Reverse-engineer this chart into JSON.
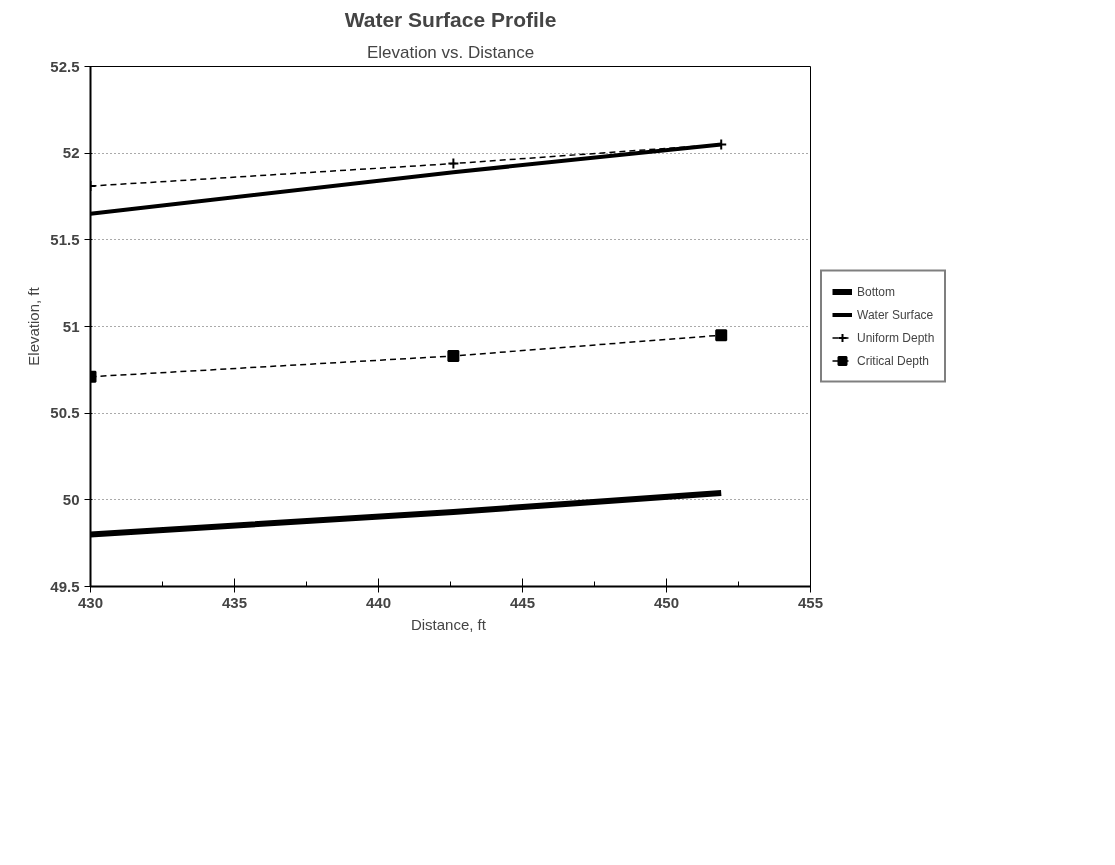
{
  "chart_data": {
    "type": "line",
    "title": "Water Surface Profile",
    "subtitle": "Elevation vs. Distance",
    "xlabel": "Distance,  ft",
    "ylabel": "Elevation, ft",
    "x": [
      430,
      442.6,
      451.9
    ],
    "series": [
      {
        "name": "Bottom",
        "color": "#000000",
        "values": [
          49.8,
          49.93,
          50.04
        ],
        "line_style": "solid",
        "marker": "none"
      },
      {
        "name": "Water Surface",
        "color": "#000000",
        "values": [
          51.65,
          51.89,
          52.05
        ],
        "line_style": "solid",
        "marker": "none"
      },
      {
        "name": "Uniform Depth",
        "color": "#000000",
        "values": [
          51.81,
          51.94,
          52.05
        ],
        "line_style": "dashed",
        "marker": "cross"
      },
      {
        "name": "Critical Depth",
        "color": "#000000",
        "values": [
          50.71,
          50.83,
          50.95
        ],
        "line_style": "dashed",
        "marker": "square"
      }
    ],
    "xlim": [
      430,
      455
    ],
    "xticks": [
      430,
      435,
      440,
      445,
      450,
      455
    ],
    "ylim": [
      49.5,
      52.5
    ],
    "yticks": [
      49.5,
      50,
      50.5,
      51,
      51.5,
      52,
      52.5
    ],
    "grid": "y",
    "legend": "right"
  }
}
